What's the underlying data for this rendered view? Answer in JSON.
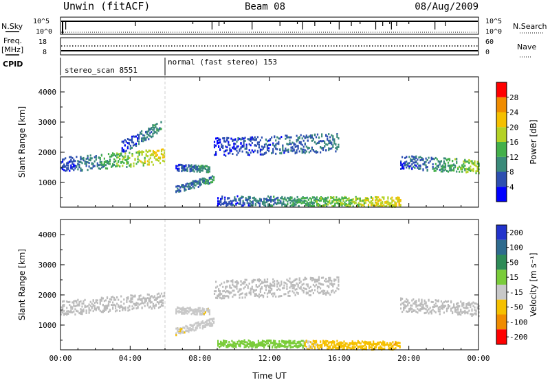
{
  "header": {
    "station": "Unwin (fitACF)",
    "beam": "Beam 08",
    "date": "08/Aug/2009"
  },
  "status_panel": {
    "nsky_label": "N.Sky",
    "nsky_ticks": [
      "10^5",
      "10^0"
    ],
    "nsearch_label": "N.Search",
    "nsearch_ticks": [
      "10^5",
      "10^0"
    ],
    "freq_label_1": "Freq.",
    "freq_label_2": "[MHz]",
    "freq_ticks": [
      "18",
      "8"
    ],
    "nave_label": "Nave",
    "nave_ticks": [
      "60",
      "0"
    ],
    "cpid_label": "CPID",
    "cpid_segments": [
      {
        "label": "stereo_scan 8551",
        "start_hour": 0,
        "end_hour": 6
      },
      {
        "label": "normal (fast stereo) 153",
        "start_hour": 6,
        "end_hour": 24
      }
    ]
  },
  "colors": {
    "power_scale": [
      "#0000ff",
      "#2d4fb0",
      "#3a8a7a",
      "#44b04a",
      "#b4d226",
      "#f5c000",
      "#f08c00",
      "#ff0000"
    ],
    "velocity_scale": [
      "#2233cc",
      "#2e6b8e",
      "#2e8b57",
      "#7acc3a",
      "#c8c8c8",
      "#f5c000",
      "#f08c00",
      "#ff0000"
    ],
    "ground_scatter": "#bbbbbb"
  },
  "chart_data": [
    {
      "type": "heatmap",
      "ylabel": "Slant Range [km]",
      "ylim": [
        180,
        4500
      ],
      "yticks": [
        "1000",
        "2000",
        "3000",
        "4000"
      ],
      "ytick_values": [
        1000,
        2000,
        3000,
        4000
      ],
      "colorbar_label": "Power [dB]",
      "colorbar_ticks": [
        "4",
        "8",
        "12",
        "16",
        "20",
        "24",
        "28"
      ],
      "clim": [
        0,
        30
      ],
      "bands": [
        {
          "t0": 0.0,
          "t1": 6.0,
          "r0": 1600,
          "r1": 1900,
          "rw": 250,
          "v0": 4,
          "v1": 20
        },
        {
          "t0": 3.5,
          "t1": 5.8,
          "r0": 2200,
          "r1": 2900,
          "rw": 200,
          "v0": 4,
          "v1": 10
        },
        {
          "t0": 6.6,
          "t1": 8.6,
          "r0": 1520,
          "r1": 1480,
          "rw": 110,
          "v0": 4,
          "v1": 12
        },
        {
          "t0": 6.6,
          "t1": 8.8,
          "r0": 800,
          "r1": 1150,
          "rw": 120,
          "v0": 6,
          "v1": 10
        },
        {
          "t0": 8.8,
          "t1": 16.0,
          "r0": 2200,
          "r1": 2350,
          "rw": 300,
          "v0": 4,
          "v1": 8
        },
        {
          "t0": 9.0,
          "t1": 19.5,
          "r0": 420,
          "r1": 380,
          "rw": 160,
          "v0": 4,
          "v1": 20
        },
        {
          "t0": 19.5,
          "t1": 24.0,
          "r0": 1700,
          "r1": 1550,
          "rw": 230,
          "v0": 4,
          "v1": 16
        }
      ]
    },
    {
      "type": "heatmap",
      "xlabel": "Time UT",
      "ylabel": "Slant Range [km]",
      "ylim": [
        180,
        4500
      ],
      "yticks": [
        "1000",
        "2000",
        "3000",
        "4000"
      ],
      "ytick_values": [
        1000,
        2000,
        3000,
        4000
      ],
      "xticks": [
        "00:00",
        "04:00",
        "08:00",
        "12:00",
        "16:00",
        "20:00",
        "00:00"
      ],
      "xtick_values": [
        0,
        4,
        8,
        12,
        16,
        20,
        24
      ],
      "xlim": [
        0,
        24
      ],
      "colorbar_label": "Velocity [m s⁻¹]",
      "colorbar_ticks": [
        "200",
        "100",
        "50",
        "15",
        "-15",
        "-50",
        "-100",
        "-200"
      ],
      "clim": [
        -250,
        250
      ],
      "bands": [
        {
          "t0": 0.0,
          "t1": 6.0,
          "r0": 1600,
          "r1": 1850,
          "rw": 250,
          "v0": 0,
          "v1": 0
        },
        {
          "t0": 6.6,
          "t1": 8.6,
          "r0": 1520,
          "r1": 1480,
          "rw": 110,
          "v0": -40,
          "v1": -60
        },
        {
          "t0": 6.6,
          "t1": 8.8,
          "r0": 800,
          "r1": 1150,
          "rw": 120,
          "v0": -60,
          "v1": -40
        },
        {
          "t0": 8.8,
          "t1": 16.0,
          "r0": 2200,
          "r1": 2350,
          "rw": 300,
          "v0": 0,
          "v1": 0
        },
        {
          "t0": 9.0,
          "t1": 14.0,
          "r0": 420,
          "r1": 400,
          "rw": 120,
          "v0": 25,
          "v1": 30
        },
        {
          "t0": 14.0,
          "t1": 19.5,
          "r0": 380,
          "r1": 350,
          "rw": 140,
          "v0": -60,
          "v1": -120
        },
        {
          "t0": 19.5,
          "t1": 24.0,
          "r0": 1700,
          "r1": 1550,
          "rw": 230,
          "v0": 0,
          "v1": 0
        }
      ]
    }
  ]
}
